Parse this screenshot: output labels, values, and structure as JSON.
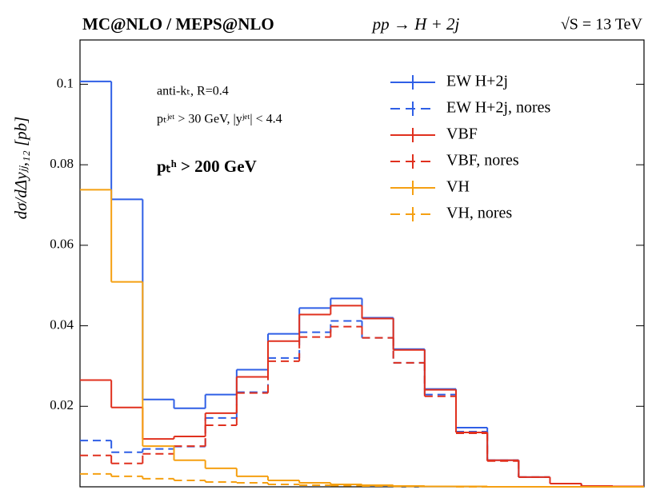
{
  "chart_data": {
    "type": "histogram",
    "title": "MC@NLO / MEPS@NLO",
    "subtitle": "pp → H + 2j",
    "energy_label": "√S = 13 TeV",
    "y_label": "dσ/dΔyⱼⱼ,₁₂ [pb]",
    "annotations": [
      "anti-kₜ, R=0.4",
      "pₜʲᵉᵗ > 30 GeV, |yʲᵉᵗ| < 4.4",
      "pₜʰ > 200 GeV"
    ],
    "bins": [
      0,
      0.5,
      1,
      1.5,
      2,
      2.5,
      3,
      3.5,
      4,
      4.5,
      5,
      5.5,
      6,
      6.5,
      7,
      7.5,
      8,
      8.5,
      9
    ],
    "xlim": [
      0,
      9
    ],
    "ylim": [
      0,
      0.111
    ],
    "yticks": [
      0.02,
      0.04,
      0.06,
      0.08,
      0.1
    ],
    "legend": "upper right",
    "series": [
      {
        "name": "EW H+2j",
        "color": "#2f5fe6",
        "linestyle": "solid",
        "values": [
          0.1007,
          0.0714,
          0.0217,
          0.0195,
          0.0229,
          0.0291,
          0.038,
          0.0444,
          0.0468,
          0.042,
          0.0342,
          0.0243,
          0.0147,
          0.0066,
          0.0024,
          0.0008,
          0.0002,
          0.0001
        ]
      },
      {
        "name": "EW H+2j, nores",
        "color": "#2f5fe6",
        "linestyle": "dashed",
        "values": [
          0.0115,
          0.0086,
          0.0094,
          0.01,
          0.0171,
          0.0235,
          0.032,
          0.0384,
          0.0412,
          0.037,
          0.0308,
          0.0229,
          0.0137,
          0.0066,
          0.0024,
          0.0008,
          0.0002,
          0.0001
        ]
      },
      {
        "name": "VBF",
        "color": "#e0301e",
        "linestyle": "solid",
        "values": [
          0.0265,
          0.0197,
          0.0119,
          0.0125,
          0.0183,
          0.0273,
          0.0362,
          0.0428,
          0.045,
          0.0418,
          0.034,
          0.0241,
          0.0135,
          0.0066,
          0.0024,
          0.0008,
          0.0002,
          0.0001
        ]
      },
      {
        "name": "VBF, nores",
        "color": "#e0301e",
        "linestyle": "dashed",
        "values": [
          0.0078,
          0.0058,
          0.0082,
          0.0101,
          0.0153,
          0.0233,
          0.0312,
          0.0372,
          0.0398,
          0.037,
          0.0308,
          0.0225,
          0.0133,
          0.0064,
          0.0024,
          0.0008,
          0.0002,
          0.0001
        ]
      },
      {
        "name": "VH",
        "color": "#f5a012",
        "linestyle": "solid",
        "values": [
          0.0738,
          0.0509,
          0.0101,
          0.0066,
          0.0046,
          0.0026,
          0.0016,
          0.001,
          0.0006,
          0.0004,
          0.0002,
          0.0001,
          0.0001,
          0,
          0,
          0,
          0,
          0
        ]
      },
      {
        "name": "VH, nores",
        "color": "#f5a012",
        "linestyle": "dashed",
        "values": [
          0.0032,
          0.0026,
          0.002,
          0.0016,
          0.0012,
          0.001,
          0.0006,
          0.0004,
          0.0003,
          0.0002,
          0.0001,
          0.0001,
          0,
          0,
          0,
          0,
          0,
          0
        ]
      }
    ]
  }
}
